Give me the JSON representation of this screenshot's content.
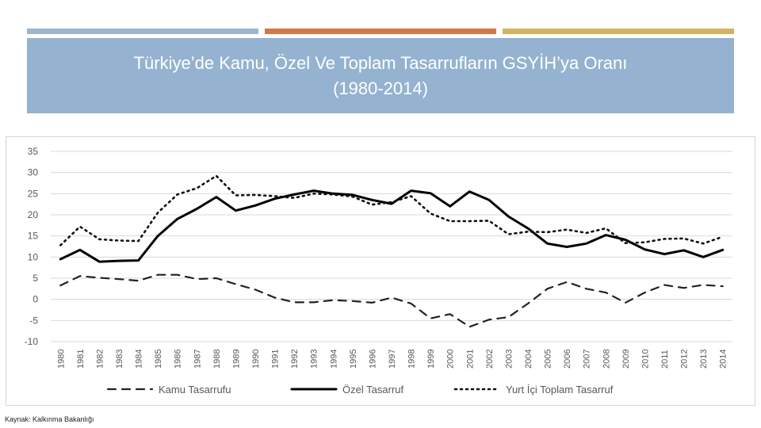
{
  "header": {
    "bar_colors": [
      "#9cb6cc",
      "#d3784a",
      "#d4b45e"
    ],
    "box_color": "#95b3d0",
    "title_line1": "Türkiye’de Kamu, Özel Ve Toplam Tasarrufların GSYİH’ya Oranı",
    "title_line2": "(1980-2014)"
  },
  "source": "Kaynak: Kalkınma Bakanlığı",
  "chart_data": {
    "type": "line",
    "title": "",
    "xlabel": "",
    "ylabel": "",
    "x": [
      "1980",
      "1981",
      "1982",
      "1983",
      "1984",
      "1985",
      "1986",
      "1987",
      "1988",
      "1989",
      "1990",
      "1991",
      "1992",
      "1993",
      "1994",
      "1995",
      "1996",
      "1997",
      "1998",
      "1999",
      "2000",
      "2001",
      "2002",
      "2003",
      "2004",
      "2005",
      "2006",
      "2007",
      "2008",
      "2009",
      "2010",
      "2011",
      "2012",
      "2013",
      "2014"
    ],
    "ylim": [
      -10,
      35
    ],
    "yticks": [
      35,
      30,
      25,
      20,
      15,
      10,
      5,
      0,
      -5,
      -10
    ],
    "grid": true,
    "legend_position": "bottom",
    "series": [
      {
        "name": "Kamu Tasarrufu",
        "style": "dashed",
        "color": "#222222",
        "values": [
          3.3,
          5.5,
          5.1,
          4.8,
          4.4,
          5.8,
          5.8,
          4.8,
          5.0,
          3.6,
          2.3,
          0.4,
          -0.7,
          -0.7,
          -0.2,
          -0.4,
          -0.8,
          0.4,
          -1.0,
          -4.5,
          -3.5,
          -6.5,
          -4.8,
          -4.2,
          -1.0,
          2.5,
          4.1,
          2.5,
          1.6,
          -0.8,
          1.6,
          3.4,
          2.7,
          3.4,
          3.1
        ]
      },
      {
        "name": "Özel Tasarruf",
        "style": "solid",
        "color": "#000000",
        "values": [
          9.5,
          11.7,
          8.9,
          9.1,
          9.2,
          15.0,
          19.0,
          21.4,
          24.2,
          21.0,
          22.2,
          23.8,
          24.8,
          25.7,
          25.0,
          24.7,
          23.5,
          22.6,
          25.7,
          25.1,
          22.0,
          25.5,
          23.5,
          19.6,
          16.8,
          13.2,
          12.4,
          13.2,
          15.2,
          14.1,
          11.8,
          10.7,
          11.6,
          10.0,
          11.7
        ]
      },
      {
        "name": "Yurt İçi Toplam Tasarruf",
        "style": "dotted",
        "color": "#111111",
        "values": [
          12.8,
          17.2,
          14.2,
          13.9,
          13.8,
          20.5,
          24.8,
          26.3,
          29.2,
          24.6,
          24.7,
          24.4,
          24.0,
          25.0,
          24.8,
          24.3,
          22.4,
          23.0,
          24.4,
          20.3,
          18.5,
          18.5,
          18.6,
          15.4,
          16.0,
          15.9,
          16.5,
          15.7,
          16.8,
          13.3,
          13.5,
          14.3,
          14.4,
          13.2,
          14.8
        ]
      }
    ]
  }
}
